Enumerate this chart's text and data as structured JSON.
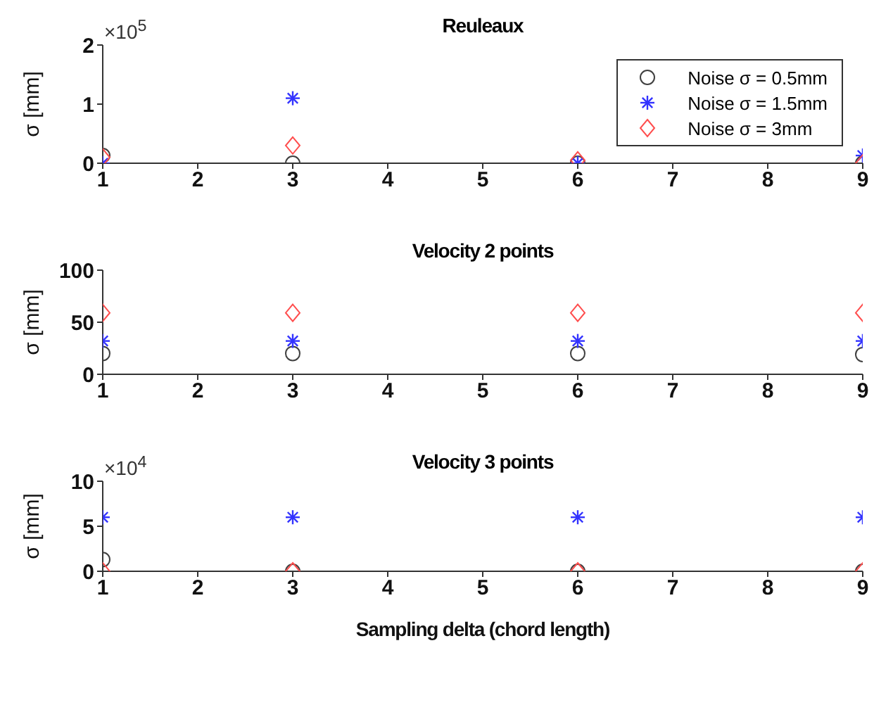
{
  "chart_data": [
    {
      "type": "scatter",
      "title": "Reuleaux",
      "ylabel": "σ [mm]",
      "x": [
        1,
        3,
        6,
        9
      ],
      "xlim": [
        1,
        9
      ],
      "xticks": [
        1,
        2,
        3,
        4,
        5,
        6,
        7,
        8,
        9
      ],
      "ylim": [
        0,
        2
      ],
      "yticks": [
        0,
        1,
        2
      ],
      "annotations": [
        "×10$^{5}$"
      ],
      "legend": "top right",
      "grid": false,
      "series": [
        {
          "name": "Noise σ = 0.5mm",
          "color": "#404040",
          "marker": "circle",
          "values": [
            0.13,
            0,
            0,
            0
          ]
        },
        {
          "name": "Noise σ = 1.5mm",
          "color": "#3333ff",
          "marker": "cross",
          "values": [
            0,
            1.1,
            0,
            0.13
          ]
        },
        {
          "name": "Noise σ = 3mm",
          "color": "#ff4d4d",
          "marker": "diamond",
          "values": [
            0.1,
            0.3,
            0.05,
            0
          ]
        }
      ]
    },
    {
      "type": "scatter",
      "title": "Velocity 2 points",
      "ylabel": "σ [mm]",
      "x": [
        1,
        3,
        6,
        9
      ],
      "xlim": [
        1,
        9
      ],
      "xticks": [
        1,
        2,
        3,
        4,
        5,
        6,
        7,
        8,
        9
      ],
      "ylim": [
        0,
        100
      ],
      "yticks": [
        0,
        50,
        100
      ],
      "legend": false,
      "grid": false,
      "series": [
        {
          "color": "#404040",
          "marker": "circle",
          "values": [
            20,
            20,
            20,
            19
          ]
        },
        {
          "color": "#3333ff",
          "marker": "cross",
          "values": [
            32,
            32,
            32,
            32
          ]
        },
        {
          "color": "#ff4d4d",
          "marker": "diamond",
          "values": [
            59,
            59,
            59,
            59
          ]
        }
      ]
    },
    {
      "type": "scatter",
      "title": "Velocity 3 points",
      "xlabel": "Sampling delta (chord length)",
      "ylabel": "σ [mm]",
      "x": [
        1,
        3,
        6,
        9
      ],
      "xlim": [
        1,
        9
      ],
      "xticks": [
        1,
        2,
        3,
        4,
        5,
        6,
        7,
        8,
        9
      ],
      "ylim": [
        0,
        10
      ],
      "yticks": [
        0,
        5,
        10
      ],
      "annotations": [
        "×10$^{4}$"
      ],
      "legend": false,
      "grid": false,
      "series": [
        {
          "color": "#404040",
          "marker": "circle",
          "values": [
            1.3,
            0,
            0,
            0
          ]
        },
        {
          "color": "#3333ff",
          "marker": "cross",
          "values": [
            6,
            6,
            6,
            6
          ]
        },
        {
          "color": "#ff4d4d",
          "marker": "diamond",
          "values": [
            0,
            0,
            0,
            0
          ]
        }
      ]
    }
  ]
}
